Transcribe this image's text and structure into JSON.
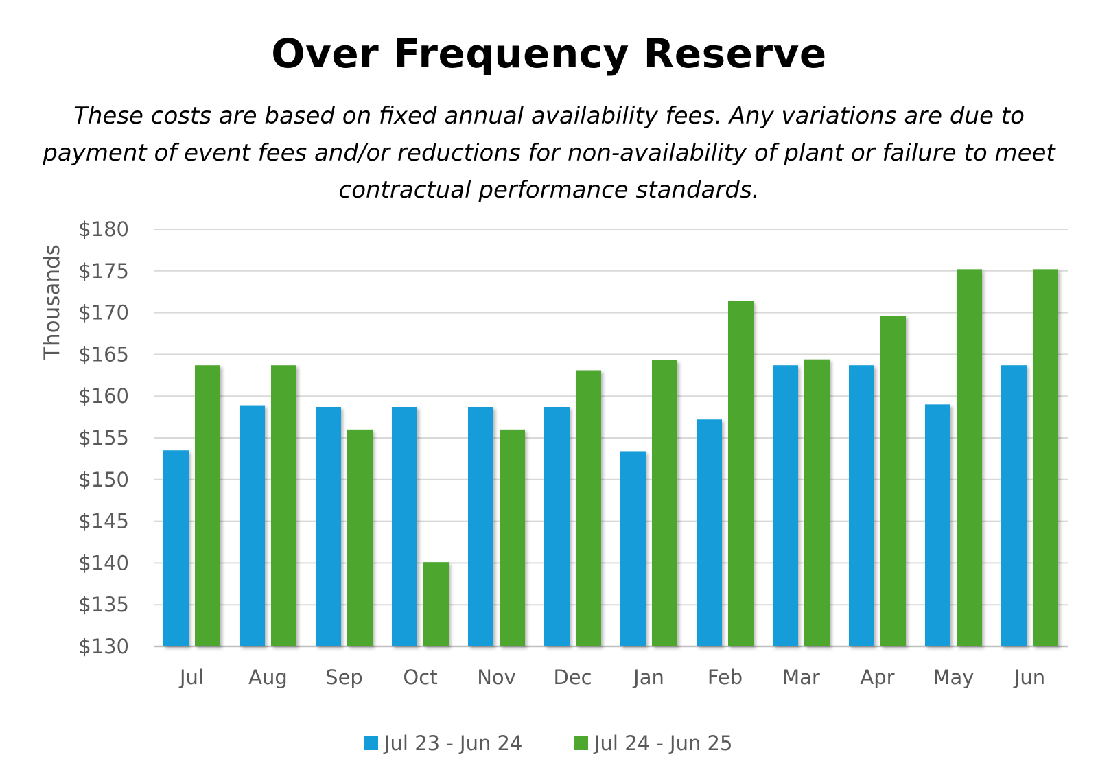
{
  "chart_data": {
    "type": "bar",
    "title": "Over Frequency Reserve",
    "subtitle": "These costs are based on fixed annual availability fees.  Any variations are due to payment of event fees and/or  reductions for non-availability of plant or failure to meet contractual performance standards.",
    "xlabel": "",
    "ylabel": "Thousands",
    "ylim": [
      130,
      180
    ],
    "ytick_step": 5,
    "ytick_prefix": "$",
    "grid": true,
    "legend_position": "bottom",
    "categories": [
      "Jul",
      "Aug",
      "Sep",
      "Oct",
      "Nov",
      "Dec",
      "Jan",
      "Feb",
      "Mar",
      "Apr",
      "May",
      "Jun"
    ],
    "series": [
      {
        "name": "Jul 23 - Jun 24",
        "color": "#149cd8",
        "values": [
          153.5,
          158.9,
          158.7,
          158.7,
          158.7,
          158.7,
          153.4,
          157.2,
          163.7,
          163.7,
          159.0,
          163.7
        ]
      },
      {
        "name": "Jul 24 - Jun 25",
        "color": "#4ea72e",
        "values": [
          163.7,
          163.7,
          156.0,
          140.1,
          156.0,
          163.1,
          164.3,
          171.4,
          164.4,
          169.6,
          175.2,
          175.2
        ]
      }
    ]
  }
}
